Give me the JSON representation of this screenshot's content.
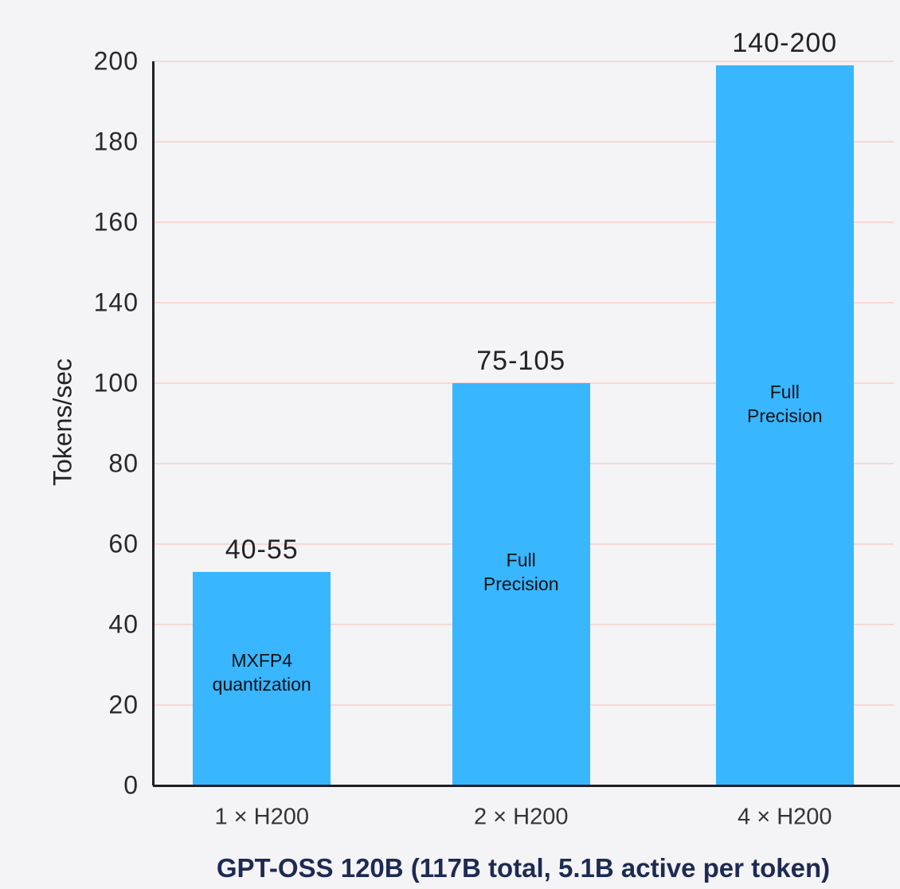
{
  "chart_data": {
    "type": "bar",
    "title": "GPT-OSS 120B (117B total, 5.1B active per token)",
    "ylabel": "Tokens/sec",
    "xlabel": "",
    "ylim": [
      0,
      200
    ],
    "y_ticks": [
      200,
      180,
      160,
      140,
      100,
      80,
      60,
      40,
      20,
      0
    ],
    "grid": true,
    "legend": false,
    "categories": [
      "1 × H200",
      "2 × H200",
      "4 × H200"
    ],
    "bars": [
      {
        "category": "1 × H200",
        "value_label": "40-55",
        "range_min": 40,
        "range_max": 55,
        "drawn_value": 53,
        "note_lines": [
          "MXFP4",
          "quantization"
        ]
      },
      {
        "category": "2 × H200",
        "value_label": "75-105",
        "range_min": 75,
        "range_max": 105,
        "drawn_value": 100,
        "note_lines": [
          "Full",
          "Precision"
        ]
      },
      {
        "category": "4 × H200",
        "value_label": "140-200",
        "range_min": 140,
        "range_max": 200,
        "drawn_value": 199,
        "note_lines": [
          "Full",
          "Precision"
        ]
      }
    ],
    "colors": {
      "bar": "#38b6ff",
      "background": "#f4f3f5",
      "gridline": "#f7d8d4",
      "axis": "#202024",
      "tick_text": "#28292c",
      "title": "#1d2b53"
    }
  }
}
